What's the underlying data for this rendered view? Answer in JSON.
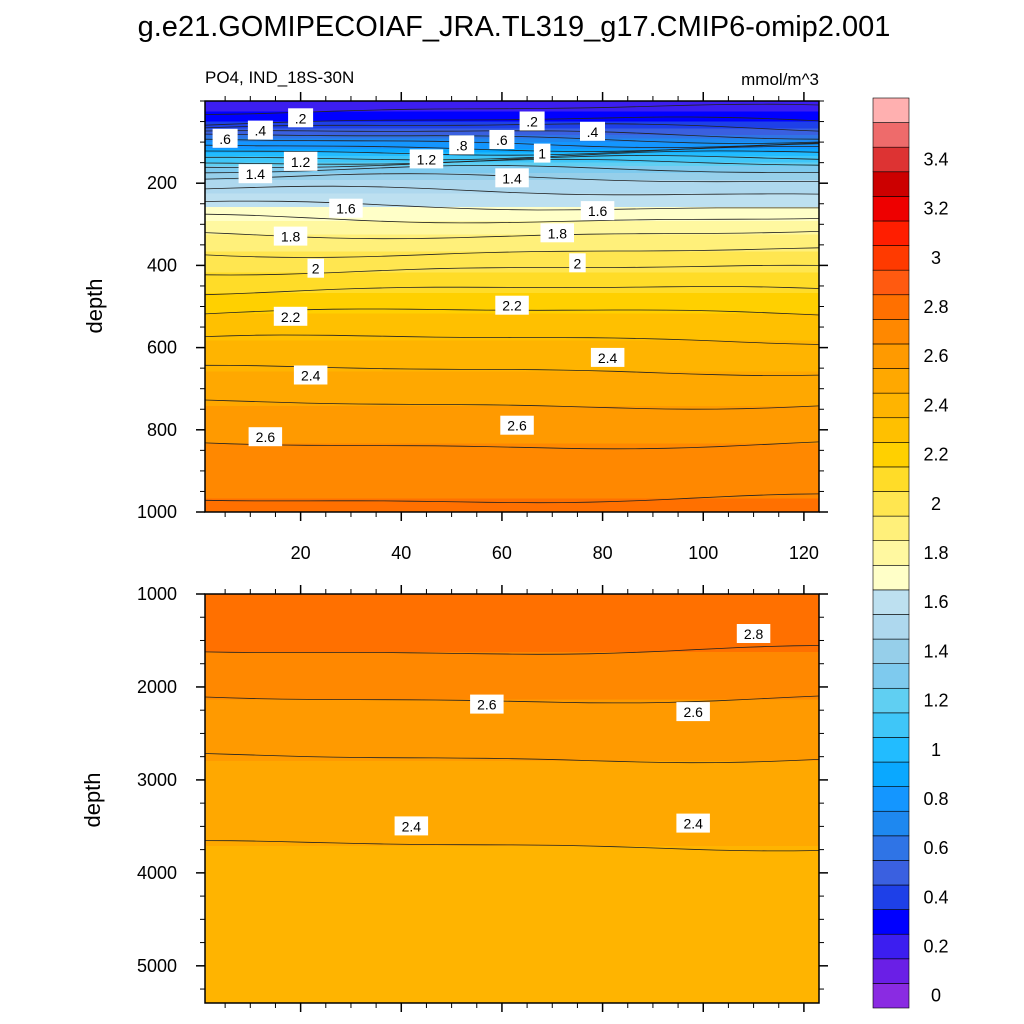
{
  "figure": {
    "title": "g.e21.GOMIPECOIAF_JRA.TL319_g17.CMIP6-omip2.001",
    "left_subtitle": "PO4, IND_18S-30N",
    "right_subtitle": "mmol/m^3"
  },
  "chart_data": [
    {
      "type": "contour",
      "panel": "upper",
      "variable": "PO4",
      "region": "IND_18S-30N",
      "units": "mmol/m^3",
      "xlabel": "",
      "ylabel": "depth",
      "xlim": [
        1,
        123
      ],
      "ylim": [
        1000,
        0
      ],
      "x_ticks": [
        20,
        40,
        60,
        80,
        100,
        120
      ],
      "y_ticks": [
        200,
        400,
        600,
        800,
        1000
      ],
      "y_axis_reversed": true,
      "contour_interval": 0.1,
      "contour_labels": [
        {
          "text": ".6",
          "x": 5,
          "depth": 92
        },
        {
          "text": ".4",
          "x": 12,
          "depth": 72
        },
        {
          "text": ".2",
          "x": 20,
          "depth": 42
        },
        {
          "text": ".2",
          "x": 66,
          "depth": 50
        },
        {
          "text": ".4",
          "x": 78,
          "depth": 75
        },
        {
          "text": ".8",
          "x": 52,
          "depth": 108
        },
        {
          "text": ".6",
          "x": 60,
          "depth": 95
        },
        {
          "text": "1",
          "x": 68,
          "depth": 128
        },
        {
          "text": "1.2",
          "x": 20,
          "depth": 148
        },
        {
          "text": "1.2",
          "x": 45,
          "depth": 142
        },
        {
          "text": "1.4",
          "x": 11,
          "depth": 178
        },
        {
          "text": "1.4",
          "x": 62,
          "depth": 188
        },
        {
          "text": "1.6",
          "x": 29,
          "depth": 262
        },
        {
          "text": "1.6",
          "x": 79,
          "depth": 268
        },
        {
          "text": "1.8",
          "x": 18,
          "depth": 330
        },
        {
          "text": "1.8",
          "x": 71,
          "depth": 322
        },
        {
          "text": "2",
          "x": 23,
          "depth": 408
        },
        {
          "text": "2",
          "x": 75,
          "depth": 395
        },
        {
          "text": "2.2",
          "x": 18,
          "depth": 525
        },
        {
          "text": "2.2",
          "x": 62,
          "depth": 498
        },
        {
          "text": "2.4",
          "x": 22,
          "depth": 668
        },
        {
          "text": "2.4",
          "x": 81,
          "depth": 625
        },
        {
          "text": "2.6",
          "x": 13,
          "depth": 818
        },
        {
          "text": "2.6",
          "x": 63,
          "depth": 790
        }
      ]
    },
    {
      "type": "contour",
      "panel": "lower",
      "variable": "PO4",
      "region": "IND_18S-30N",
      "units": "mmol/m^3",
      "xlabel": "",
      "ylabel": "depth",
      "xlim": [
        1,
        123
      ],
      "ylim": [
        5400,
        1000
      ],
      "x_ticks": [
        20,
        40,
        60,
        80,
        100,
        120
      ],
      "y_ticks": [
        1000,
        2000,
        3000,
        4000,
        5000
      ],
      "y_axis_reversed": true,
      "contour_interval": 0.1,
      "contour_labels": [
        {
          "text": "2.8",
          "x": 110,
          "depth": 1430
        },
        {
          "text": "2.6",
          "x": 57,
          "depth": 2190
        },
        {
          "text": "2.6",
          "x": 98,
          "depth": 2270
        },
        {
          "text": "2.4",
          "x": 42,
          "depth": 3500
        },
        {
          "text": "2.4",
          "x": 98,
          "depth": 3470
        }
      ]
    }
  ],
  "colorbar": {
    "levels": [
      0,
      0.1,
      0.2,
      0.3,
      0.4,
      0.5,
      0.6,
      0.7,
      0.8,
      0.9,
      1,
      1.1,
      1.2,
      1.3,
      1.4,
      1.5,
      1.6,
      1.7,
      1.8,
      1.9,
      2,
      2.1,
      2.2,
      2.3,
      2.4,
      2.5,
      2.6,
      2.7,
      2.8,
      2.9,
      3,
      3.1,
      3.2,
      3.3,
      3.4,
      3.5
    ],
    "labels": [
      "0",
      "0.2",
      "0.4",
      "0.6",
      "0.8",
      "1",
      "1.2",
      "1.4",
      "1.6",
      "1.8",
      "2",
      "2.2",
      "2.4",
      "2.6",
      "2.8",
      "3",
      "3.2",
      "3.4"
    ],
    "colors": [
      "#8a2be2",
      "#6a1fe6",
      "#3c1ef0",
      "#0000ff",
      "#1e40e8",
      "#3a60e0",
      "#2f74e6",
      "#1e88f0",
      "#1496ff",
      "#0aa8ff",
      "#22bcff",
      "#3fc6f8",
      "#60cff2",
      "#7ecaee",
      "#96cfea",
      "#aed8ee",
      "#bde0f0",
      "#ffffc8",
      "#fff8a0",
      "#fff07a",
      "#ffe650",
      "#ffdc28",
      "#ffd000",
      "#ffc000",
      "#ffb400",
      "#ffa800",
      "#ff9a00",
      "#ff8800",
      "#ff7000",
      "#ff5a10",
      "#ff3a00",
      "#ff1e00",
      "#ee0000",
      "#cc0000",
      "#dd3333",
      "#ee6b6b",
      "#ffb0b0"
    ]
  }
}
